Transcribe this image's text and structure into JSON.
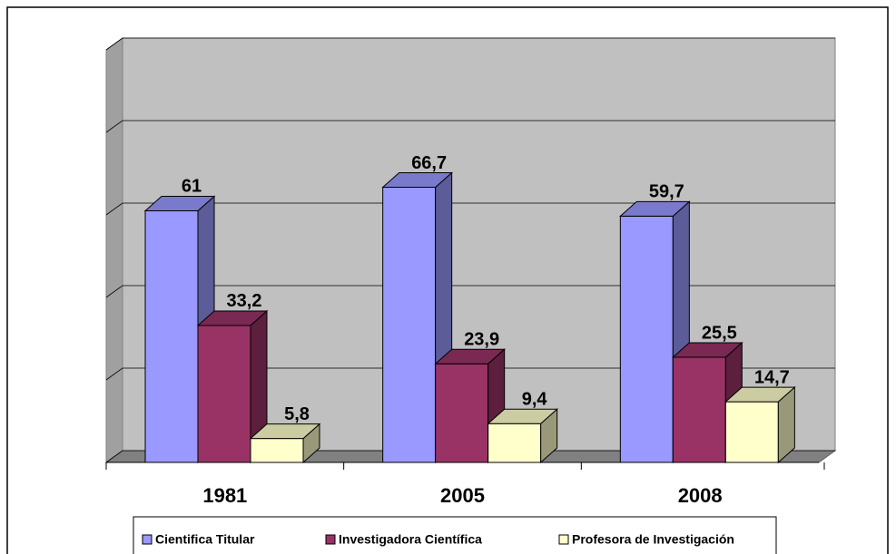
{
  "chart_data": {
    "type": "bar3d",
    "categories": [
      "1981",
      "2005",
      "2008"
    ],
    "series": [
      {
        "name": "Cientifica Titular",
        "color": "#9999ff",
        "values": [
          61,
          66.7,
          59.7
        ],
        "value_labels": [
          "61",
          "66,7",
          "59,7"
        ]
      },
      {
        "name": "Investigadora Científica",
        "color": "#993366",
        "values": [
          33.2,
          23.9,
          25.5
        ],
        "value_labels": [
          "33,2",
          "23,9",
          "25,5"
        ]
      },
      {
        "name": "Profesora de Investigación",
        "color": "#ffffcc",
        "values": [
          5.8,
          9.4,
          14.7
        ],
        "value_labels": [
          "5,8",
          "9,4",
          "14,7"
        ]
      }
    ],
    "ylim": [
      0,
      100
    ],
    "yticks": [
      0,
      20,
      40,
      60,
      80,
      100
    ],
    "grid": true,
    "legend": "bottom"
  }
}
